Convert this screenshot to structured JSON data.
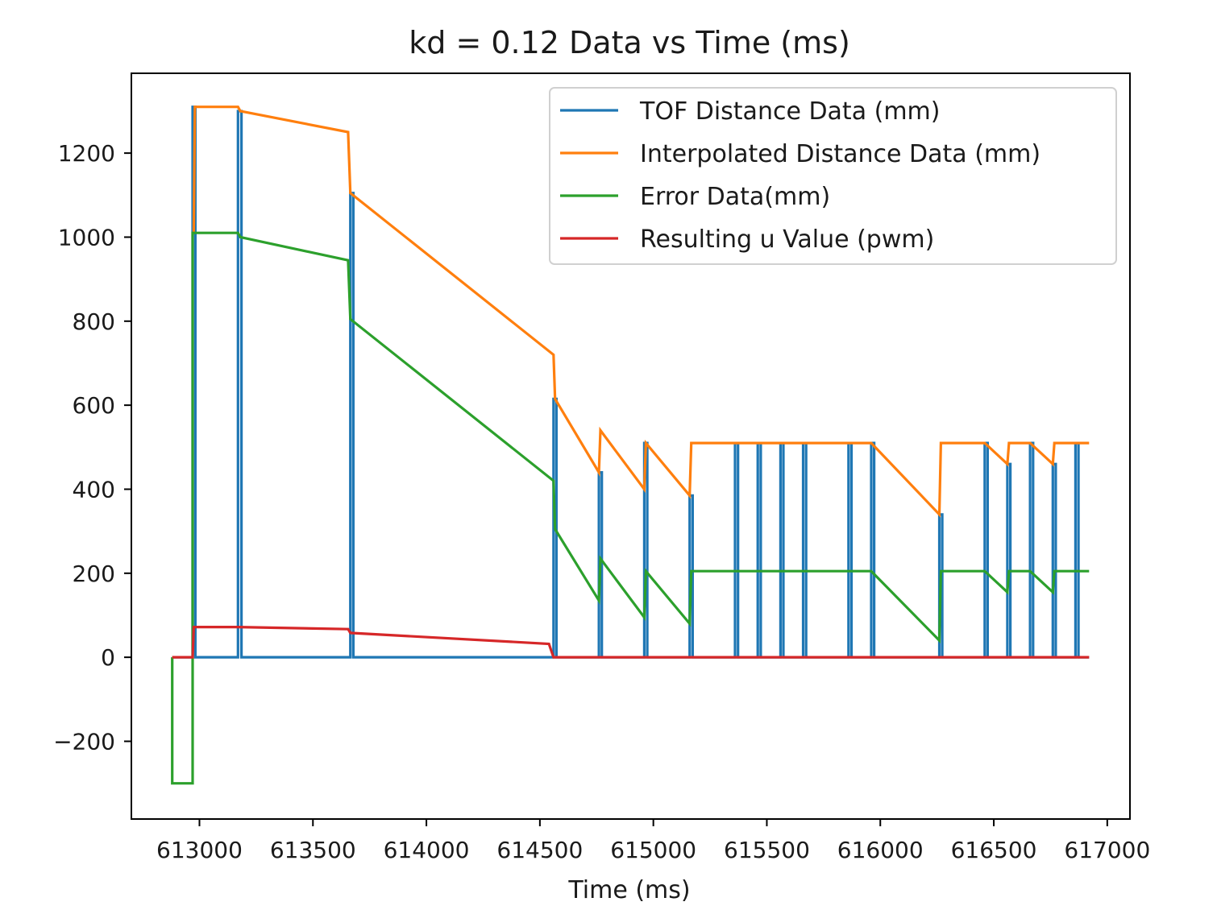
{
  "chart_data": {
    "type": "line",
    "title": "kd = 0.12 Data vs Time (ms)",
    "xlabel": "Time (ms)",
    "ylabel": "",
    "xlim": [
      612700,
      617100
    ],
    "ylim": [
      -385,
      1390
    ],
    "xticks": [
      613000,
      613500,
      614000,
      614500,
      615000,
      615500,
      616000,
      616500,
      617000
    ],
    "yticks": [
      -200,
      0,
      200,
      400,
      600,
      800,
      1000,
      1200
    ],
    "grid": false,
    "legend_position": "top-right",
    "series": [
      {
        "name": "TOF Distance Data (mm)",
        "color": "#1f77b4",
        "x": [
          612880,
          612970,
          612970,
          612982,
          612982,
          613170,
          613170,
          613185,
          613185,
          613665,
          613665,
          613678,
          613678,
          614560,
          614560,
          614573,
          614573,
          614760,
          614760,
          614773,
          614773,
          614960,
          614960,
          614973,
          614973,
          615160,
          615160,
          615173,
          615173,
          615360,
          615360,
          615373,
          615373,
          615460,
          615460,
          615473,
          615473,
          615560,
          615560,
          615573,
          615573,
          615660,
          615660,
          615673,
          615673,
          615860,
          615860,
          615873,
          615873,
          615960,
          615960,
          615973,
          615973,
          616260,
          616260,
          616273,
          616273,
          616460,
          616460,
          616473,
          616473,
          616560,
          616560,
          616573,
          616573,
          616660,
          616660,
          616673,
          616673,
          616760,
          616760,
          616773,
          616773,
          616860,
          616860,
          616873,
          616873,
          616920
        ],
        "y": [
          0,
          0,
          1310,
          1310,
          0,
          0,
          1300,
          1300,
          0,
          0,
          1105,
          1105,
          0,
          0,
          615,
          615,
          0,
          0,
          440,
          440,
          0,
          0,
          510,
          510,
          0,
          0,
          385,
          385,
          0,
          0,
          510,
          510,
          0,
          0,
          510,
          510,
          0,
          0,
          510,
          510,
          0,
          0,
          510,
          510,
          0,
          0,
          510,
          510,
          0,
          0,
          510,
          510,
          0,
          0,
          340,
          340,
          0,
          0,
          510,
          510,
          0,
          0,
          460,
          460,
          0,
          0,
          510,
          510,
          0,
          0,
          460,
          460,
          0,
          0,
          510,
          510,
          0,
          0
        ]
      },
      {
        "name": "Interpolated Distance Data (mm)",
        "color": "#ff7f0e",
        "x": [
          612975,
          612980,
          613170,
          613180,
          613655,
          613665,
          614560,
          614567,
          614760,
          614767,
          614960,
          614967,
          615160,
          615167,
          615960,
          616260,
          616267,
          616460,
          616560,
          616567,
          616660,
          616760,
          616767,
          616920
        ],
        "y": [
          1010,
          1310,
          1310,
          1300,
          1250,
          1105,
          720,
          615,
          440,
          540,
          400,
          510,
          385,
          510,
          510,
          340,
          510,
          510,
          460,
          510,
          510,
          460,
          510,
          510
        ]
      },
      {
        "name": "Error Data(mm)",
        "color": "#2ca02c",
        "x": [
          612880,
          612880,
          612970,
          612970,
          613170,
          613180,
          613655,
          613665,
          614560,
          614567,
          614760,
          614767,
          614960,
          614967,
          615160,
          615167,
          615960,
          616260,
          616267,
          616460,
          616560,
          616567,
          616660,
          616760,
          616767,
          616920
        ],
        "y": [
          0,
          -300,
          -300,
          1010,
          1010,
          1000,
          945,
          805,
          420,
          305,
          135,
          235,
          95,
          205,
          80,
          205,
          205,
          40,
          205,
          205,
          155,
          205,
          205,
          155,
          205,
          205
        ]
      },
      {
        "name": "Resulting u Value (pwm)",
        "color": "#d62728",
        "x": [
          612880,
          612970,
          612975,
          613170,
          613655,
          613665,
          614540,
          614560,
          616920
        ],
        "y": [
          0,
          0,
          72,
          72,
          67,
          58,
          32,
          0,
          0
        ]
      }
    ]
  }
}
